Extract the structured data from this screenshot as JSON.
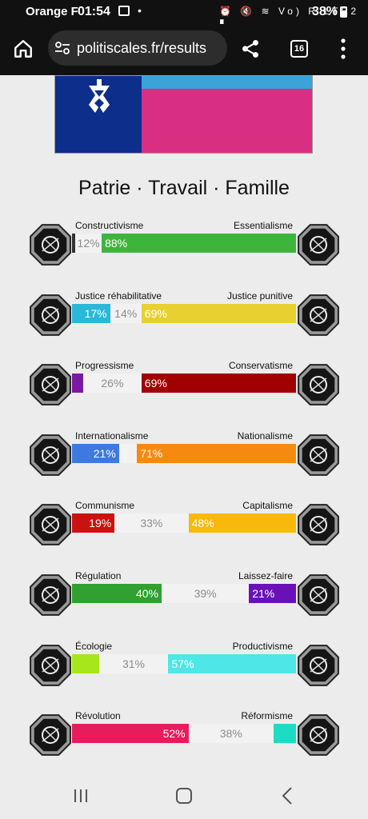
{
  "status_bar": {
    "carrier": "Orange F",
    "time": "01:54",
    "dot": "•",
    "signal_icons": "⏰ 🔇 ≋ Vo) R LTE2 ▮",
    "battery": "38%"
  },
  "browser": {
    "url": "politiscales.fr/results",
    "tab_count": "16"
  },
  "flag": {
    "canton_color": "#0d2e8a",
    "stripe_top_color": "#3aa3d8",
    "stripe_main_color": "#d92f82",
    "emblem_color": "#ffffff"
  },
  "motto": "Patrie · Travail · Famille",
  "axes": [
    {
      "left_label": "Constructivisme",
      "right_label": "Essentialisme",
      "left_icon": "eye-icon",
      "right_icon": "flower-icon",
      "segments": [
        {
          "text": "",
          "pct": 0,
          "color": "#333333",
          "kind": "left"
        },
        {
          "text": "12%",
          "pct": 12,
          "color": "#f2f2f2",
          "kind": "neutral"
        },
        {
          "text": "88%",
          "pct": 88,
          "color": "#3db53d",
          "kind": "right"
        }
      ]
    },
    {
      "left_label": "Justice réhabilitative",
      "right_label": "Justice punitive",
      "left_icon": "handshake-icon",
      "right_icon": "prison-bars-icon",
      "segments": [
        {
          "text": "17%",
          "pct": 17,
          "color": "#29b8d8",
          "kind": "left"
        },
        {
          "text": "14%",
          "pct": 14,
          "color": "#f2f2f2",
          "kind": "neutral"
        },
        {
          "text": "69%",
          "pct": 69,
          "color": "#e8d030",
          "kind": "right"
        }
      ]
    },
    {
      "left_label": "Progressisme",
      "right_label": "Conservatisme",
      "left_icon": "rocket-icon",
      "right_icon": "quill-icon",
      "segments": [
        {
          "text": "",
          "pct": 5,
          "color": "#7a1aa0",
          "kind": "left"
        },
        {
          "text": "26%",
          "pct": 26,
          "color": "#f2f2f2",
          "kind": "neutral"
        },
        {
          "text": "69%",
          "pct": 69,
          "color": "#a00000",
          "kind": "right"
        }
      ]
    },
    {
      "left_label": "Internationalisme",
      "right_label": "Nationalisme",
      "left_icon": "globe-icon",
      "right_icon": "flag-icon",
      "segments": [
        {
          "text": "21%",
          "pct": 21,
          "color": "#3d79e0",
          "kind": "left"
        },
        {
          "text": "",
          "pct": 8,
          "color": "#f2f2f2",
          "kind": "neutral"
        },
        {
          "text": "71%",
          "pct": 71,
          "color": "#f68a10",
          "kind": "right"
        }
      ]
    },
    {
      "left_label": "Communisme",
      "right_label": "Capitalisme",
      "left_icon": "hammer-sickle-icon",
      "right_icon": "money-bag-icon",
      "segments": [
        {
          "text": "19%",
          "pct": 19,
          "color": "#cc1111",
          "kind": "left"
        },
        {
          "text": "33%",
          "pct": 33,
          "color": "#f2f2f2",
          "kind": "neutral"
        },
        {
          "text": "48%",
          "pct": 48,
          "color": "#f9b90c",
          "kind": "right"
        }
      ]
    },
    {
      "left_label": "Régulation",
      "right_label": "Laissez-faire",
      "left_icon": "ruler-icon",
      "right_icon": "butterfly-icon",
      "segments": [
        {
          "text": "40%",
          "pct": 40,
          "color": "#30a030",
          "kind": "left"
        },
        {
          "text": "39%",
          "pct": 39,
          "color": "#f2f2f2",
          "kind": "neutral"
        },
        {
          "text": "21%",
          "pct": 21,
          "color": "#6a10b8",
          "kind": "right"
        }
      ]
    },
    {
      "left_label": "Écologie",
      "right_label": "Productivisme",
      "left_icon": "leaf-icon",
      "right_icon": "factory-icon",
      "segments": [
        {
          "text": "",
          "pct": 12,
          "color": "#a6e61a",
          "kind": "left"
        },
        {
          "text": "31%",
          "pct": 31,
          "color": "#f2f2f2",
          "kind": "neutral"
        },
        {
          "text": "57%",
          "pct": 57,
          "color": "#4ee6e6",
          "kind": "right"
        }
      ]
    },
    {
      "left_label": "Révolution",
      "right_label": "Réformisme",
      "left_icon": "fist-icon",
      "right_icon": "parliament-icon",
      "segments": [
        {
          "text": "52%",
          "pct": 52,
          "color": "#e81c5c",
          "kind": "left"
        },
        {
          "text": "38%",
          "pct": 38,
          "color": "#f2f2f2",
          "kind": "neutral"
        },
        {
          "text": "",
          "pct": 10,
          "color": "#1edcc4",
          "kind": "right"
        }
      ]
    }
  ]
}
